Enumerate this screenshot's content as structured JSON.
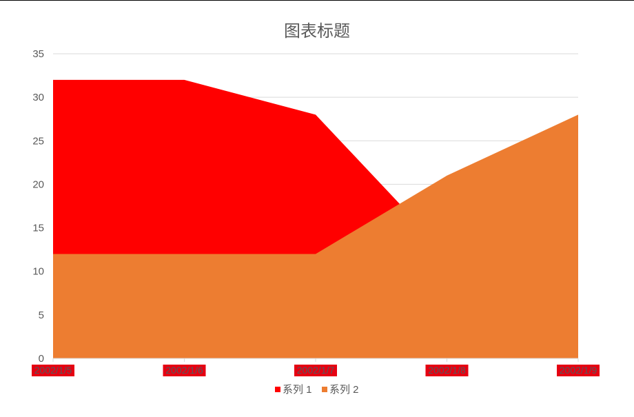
{
  "chart_data": {
    "type": "area",
    "title": "图表标题",
    "categories": [
      "2002/1/5",
      "2002/1/6",
      "2002/1/7",
      "2002/1/8",
      "2002/1/9"
    ],
    "series": [
      {
        "name": "系列 1",
        "values": [
          32,
          32,
          28,
          12,
          9
        ],
        "color": "#ff0000"
      },
      {
        "name": "系列 2",
        "values": [
          12,
          12,
          12,
          21,
          28
        ],
        "color": "#ed7d31"
      }
    ],
    "yticks": [
      "0",
      "5",
      "10",
      "15",
      "20",
      "25",
      "30",
      "35"
    ],
    "ylim": [
      0,
      35
    ],
    "grid": true,
    "legend": "bottom",
    "category_label_bg": "#e60012"
  }
}
